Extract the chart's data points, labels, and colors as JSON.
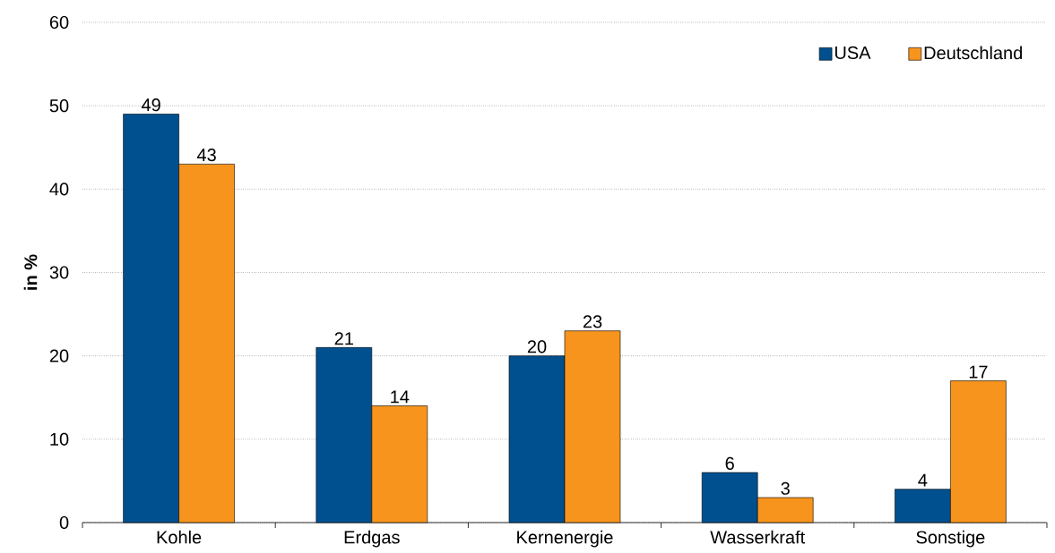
{
  "chart_data": {
    "type": "bar",
    "ylabel": "in %",
    "categories": [
      "Kohle",
      "Erdgas",
      "Kernenergie",
      "Wasserkraft",
      "Sonstige"
    ],
    "series": [
      {
        "name": "USA",
        "color": "#00508f",
        "values": [
          49,
          21,
          20,
          6,
          4
        ]
      },
      {
        "name": "Deutschland",
        "color": "#f7941d",
        "values": [
          43,
          14,
          23,
          3,
          17
        ]
      }
    ],
    "ylim": [
      0,
      60
    ],
    "yticks": [
      0,
      10,
      20,
      30,
      40,
      50,
      60
    ],
    "grid": "y",
    "legend": "top right",
    "data_labels": true
  }
}
